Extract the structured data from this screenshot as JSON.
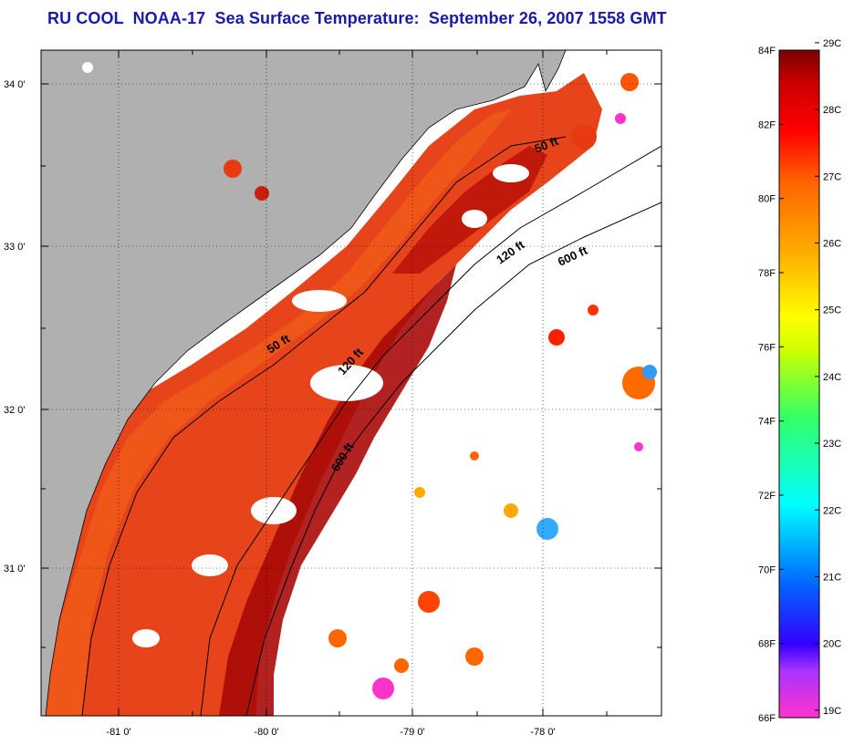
{
  "title": "RU COOL  NOAA-17  Sea Surface Temperature:  September 26, 2007 1558 GMT",
  "map": {
    "lat_labels": [
      "34 0'",
      "33 0'",
      "32 0'",
      "31 0'"
    ],
    "lon_labels": [
      "-81 0'",
      "-80 0'",
      "-79 0'",
      "-78 0'"
    ],
    "contours": [
      {
        "label": "50 ft",
        "position": "north"
      },
      {
        "label": "120 ft",
        "position": "north"
      },
      {
        "label": "600 ft",
        "position": "north"
      },
      {
        "label": "50 ft",
        "position": "middle"
      },
      {
        "label": "120 ft",
        "position": "middle"
      },
      {
        "label": "600 ft",
        "position": "south"
      }
    ],
    "colors": {
      "land": "#b0b0b0",
      "cloud": "#ffffff",
      "frame": "#000000"
    }
  },
  "colorbar": {
    "fahrenheit_labels": [
      "84F",
      "82F",
      "80F",
      "78F",
      "76F",
      "74F",
      "72F",
      "70F",
      "68F",
      "66F"
    ],
    "celsius_labels": [
      "29C",
      "28C",
      "27C",
      "26C",
      "25C",
      "24C",
      "23C",
      "22C",
      "21C",
      "20C",
      "19C"
    ],
    "colors": [
      "#ff33cc",
      "#9933ff",
      "#3333ff",
      "#0088ff",
      "#00ffff",
      "#33ff66",
      "#ccff00",
      "#ffff00",
      "#ffaa00",
      "#ff6600",
      "#ff0000",
      "#cc0000",
      "#7a0000"
    ]
  }
}
